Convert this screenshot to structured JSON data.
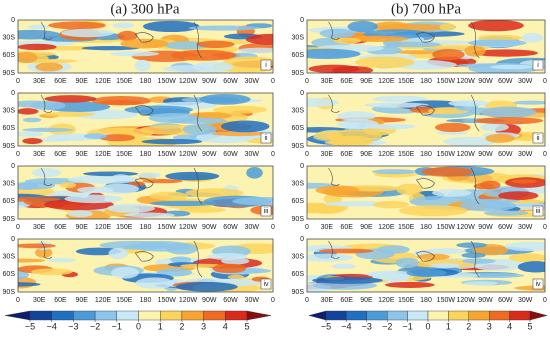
{
  "columns": [
    {
      "title": "(a) 300 hPa"
    },
    {
      "title": "(b) 700 hPa"
    }
  ],
  "rows": [
    "i",
    "ii",
    "iii",
    "iv"
  ],
  "lat_labels": [
    "0",
    "30S",
    "60S",
    "90S"
  ],
  "lon_labels": [
    "0",
    "30E",
    "60E",
    "90E",
    "120E",
    "150E",
    "180",
    "150W",
    "120W",
    "90W",
    "60W",
    "30W",
    "0"
  ],
  "colorbar": {
    "ticks": [
      {
        "value": -5,
        "label": "−5"
      },
      {
        "value": -4,
        "label": "−4"
      },
      {
        "value": -3,
        "label": "−3"
      },
      {
        "value": -2,
        "label": "−2"
      },
      {
        "value": -1,
        "label": "−1"
      },
      0,
      1,
      2,
      3,
      4,
      5
    ],
    "colors": [
      "#0a1f6e",
      "#14439c",
      "#1f6fc2",
      "#4c9bd8",
      "#8cc4ea",
      "#c8e8f6",
      "#fdf3b0",
      "#fbd45c",
      "#f8a431",
      "#ef6a22",
      "#d92a1c",
      "#8c0c0c"
    ]
  }
}
